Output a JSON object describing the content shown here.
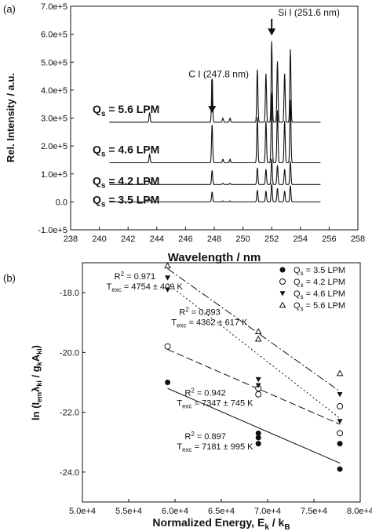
{
  "chart_data": [
    {
      "panel_label": "(a)",
      "type": "line",
      "xlabel": "Wavelength / nm",
      "ylabel": "Rel. Intensity / a.u.",
      "xlim": [
        238,
        258
      ],
      "ylim": [
        -100000,
        700000
      ],
      "x_ticks": [
        238,
        240,
        242,
        244,
        246,
        248,
        250,
        252,
        254,
        256,
        258
      ],
      "x_tick_labels": [
        "238",
        "240",
        "242",
        "244",
        "246",
        "248",
        "250",
        "252",
        "254",
        "256",
        "258"
      ],
      "y_ticks": [
        -100000,
        0,
        100000,
        200000,
        300000,
        400000,
        500000,
        600000,
        700000
      ],
      "y_tick_labels": [
        "-1.0e+5",
        "0.0",
        "1.0e+5",
        "2.0e+5",
        "3.0e+5",
        "4.0e+5",
        "5.0e+5",
        "6.0e+5",
        "7.0e+5"
      ],
      "x_range": [
        240.7,
        255.4
      ],
      "peaks": [
        {
          "x": 243.5,
          "h": 0.12
        },
        {
          "x": 247.85,
          "h": 0.55
        },
        {
          "x": 248.6,
          "h": 0.05
        },
        {
          "x": 249.1,
          "h": 0.05
        },
        {
          "x": 251.0,
          "h": 0.65
        },
        {
          "x": 251.6,
          "h": 0.6
        },
        {
          "x": 252.0,
          "h": 1.0
        },
        {
          "x": 252.4,
          "h": 0.75
        },
        {
          "x": 252.9,
          "h": 0.6
        },
        {
          "x": 253.3,
          "h": 0.9
        }
      ],
      "series": [
        {
          "name_prefix": "Q",
          "name_sub": "s",
          "name_value": "= 5.6 LPM",
          "baseline": 285000,
          "scale": 290000,
          "label_y": 330000
        },
        {
          "name_prefix": "Q",
          "name_sub": "s",
          "name_value": "= 4.6 LPM",
          "baseline": 140000,
          "scale": 250000,
          "label_y": 185000
        },
        {
          "name_prefix": "Q",
          "name_sub": "s",
          "name_value": "= 4.2 LPM",
          "baseline": 62000,
          "scale": 92000,
          "label_y": 72000
        },
        {
          "name_prefix": "Q",
          "name_sub": "s",
          "name_value": "= 3.5 LPM",
          "baseline": 0,
          "scale": 65000,
          "label_y": 5000
        }
      ],
      "annotations": [
        {
          "text": "C I (247.8 nm)",
          "x": 247.85,
          "y": 435000,
          "arrow_to": 318000
        },
        {
          "text": "Si I (251.6 nm)",
          "x": 252.0,
          "y": 655000,
          "arrow_to": 595000
        }
      ]
    },
    {
      "panel_label": "(b)",
      "type": "scatter",
      "xlabel_main": "Normalized Energy, E",
      "xlabel_sub1": "k",
      "xlabel_mid": " / k",
      "xlabel_sub2": "B",
      "ylabel_parts": [
        "ln (I",
        "em",
        "λ",
        "ki",
        " / g",
        "k",
        "A",
        "ki",
        ")"
      ],
      "xlim": [
        50000,
        80000
      ],
      "ylim": [
        -25,
        -17
      ],
      "x_ticks": [
        50000,
        55000,
        60000,
        65000,
        70000,
        75000,
        80000
      ],
      "x_tick_labels": [
        "5.0e+4",
        "5.5e+4",
        "6.0e+4",
        "6.5e+4",
        "7.0e+4",
        "7.5e+4",
        "8.0e+4"
      ],
      "y_ticks": [
        -24,
        -22,
        -20,
        -18
      ],
      "y_tick_labels": [
        "-24.0",
        "-22.0",
        "-20.0",
        "-18.0"
      ],
      "series": [
        {
          "name": "= 3.5 LPM",
          "marker": "circle-filled",
          "dash": "",
          "points": [
            [
              59200,
              -21.0
            ],
            [
              69000,
              -22.7
            ],
            [
              69000,
              -22.85
            ],
            [
              69000,
              -23.05
            ],
            [
              77800,
              -23.05
            ],
            [
              77800,
              -23.9
            ]
          ],
          "fit": [
            [
              59200,
              -21.2
            ],
            [
              77800,
              -23.7
            ]
          ]
        },
        {
          "name": "= 4.2 LPM",
          "marker": "circle-open",
          "dash": "9,4",
          "points": [
            [
              59200,
              -19.8
            ],
            [
              69000,
              -21.2
            ],
            [
              69000,
              -21.4
            ],
            [
              77800,
              -21.8
            ],
            [
              77800,
              -22.7
            ]
          ],
          "fit": [
            [
              59200,
              -19.9
            ],
            [
              77800,
              -22.4
            ]
          ]
        },
        {
          "name": "= 4.6 LPM",
          "marker": "triangle-down",
          "dash": "2,3",
          "points": [
            [
              59200,
              -17.5
            ],
            [
              59200,
              -17.9
            ],
            [
              69000,
              -20.9
            ],
            [
              69000,
              -21.1
            ],
            [
              77800,
              -21.4
            ],
            [
              77800,
              -22.3
            ]
          ],
          "fit": [
            [
              59200,
              -17.7
            ],
            [
              77800,
              -22.2
            ]
          ]
        },
        {
          "name": "= 5.6 LPM",
          "marker": "triangle-up",
          "dash": "10,3,2,3",
          "points": [
            [
              59200,
              -17.1
            ],
            [
              69000,
              -19.3
            ],
            [
              69000,
              -19.55
            ],
            [
              77800,
              -20.7
            ]
          ],
          "fit": [
            [
              59200,
              -17.2
            ],
            [
              77800,
              -21.3
            ]
          ]
        }
      ],
      "legend_prefix": "Q",
      "legend_sub": "s",
      "legend_placement": "top-right",
      "annotations": [
        {
          "r2": "R",
          "r2sup": "2",
          "r2val": " = 0.971",
          "t": "T",
          "tsub": "exc",
          "tval": " = 4754 ± 409 K",
          "x": 52600,
          "y": -17.55
        },
        {
          "r2": "R",
          "r2sup": "2",
          "r2val": " = 0.893",
          "t": "T",
          "tsub": "exc",
          "tval": " = 4362 ± 617 K",
          "x": 59600,
          "y": -18.75
        },
        {
          "r2": "R",
          "r2sup": "2",
          "r2val": " = 0.942",
          "t": "T",
          "tsub": "exc",
          "tval": " = 7347 ± 745 K",
          "x": 60200,
          "y": -21.45
        },
        {
          "r2": "R",
          "r2sup": "2",
          "r2val": " = 0.897",
          "t": "T",
          "tsub": "exc",
          "tval": " = 7181 ± 995 K",
          "x": 60200,
          "y": -22.9
        }
      ]
    }
  ]
}
